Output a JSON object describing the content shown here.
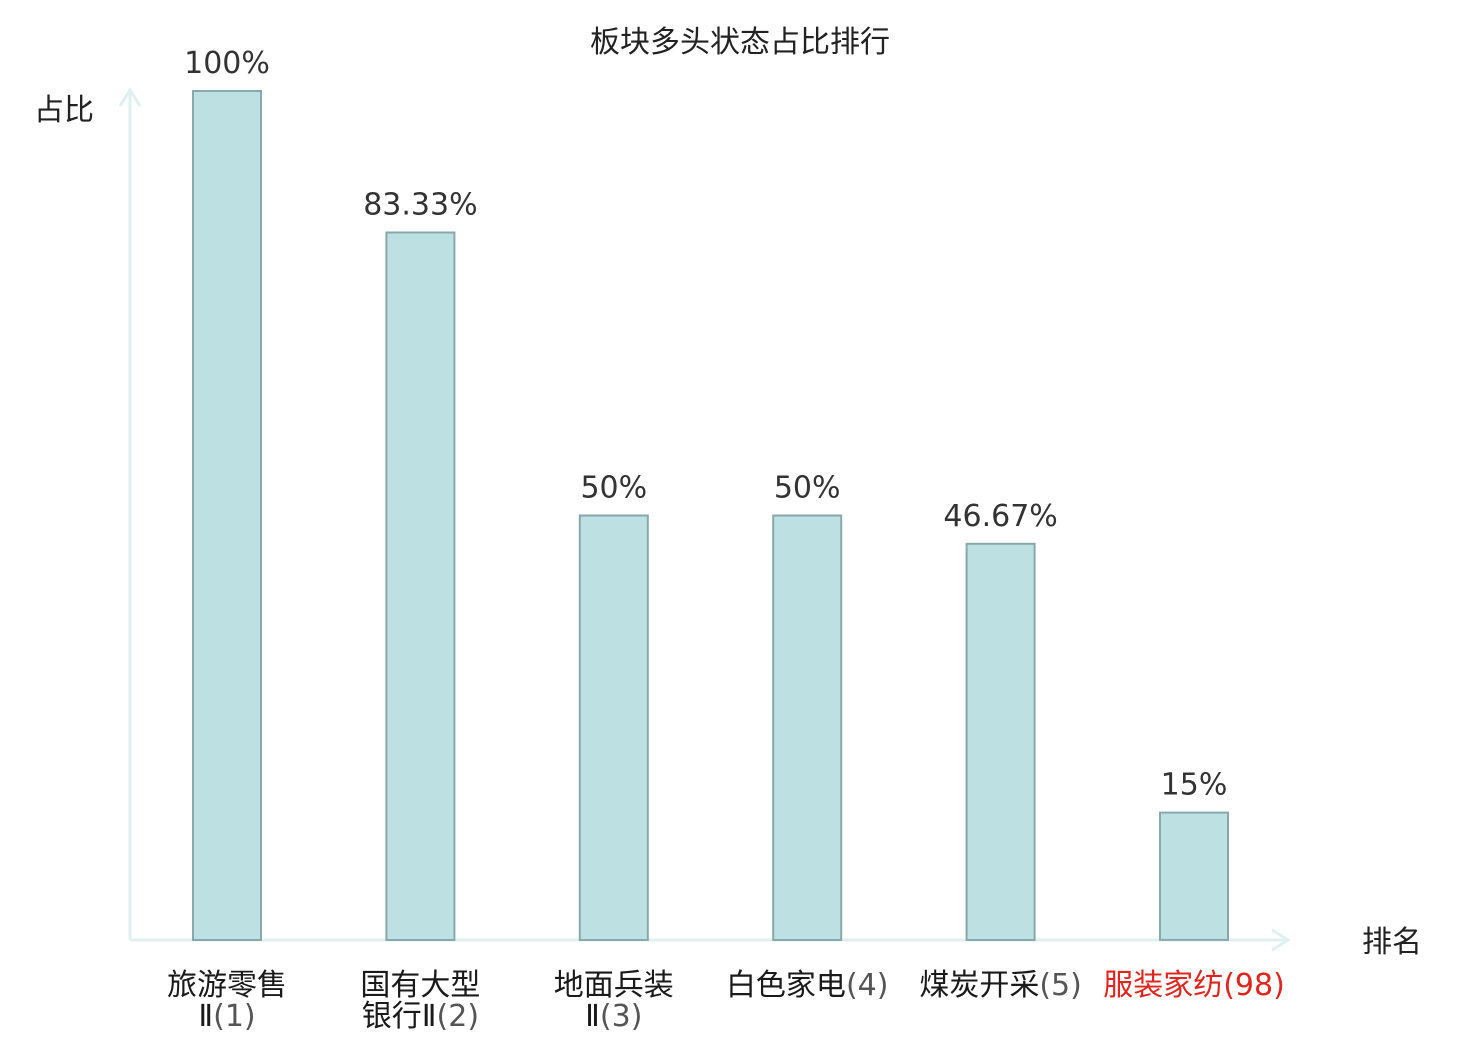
{
  "chart_data": {
    "type": "bar",
    "title": "板块多头状态占比排行",
    "ylabel": "占比",
    "xlabel": "排名",
    "ylim": [
      0,
      100
    ],
    "grid": false,
    "legend": "none",
    "values": [
      100,
      83.33,
      50,
      50,
      46.67,
      15
    ],
    "value_labels": [
      "100%",
      "83.33%",
      "50%",
      "50%",
      "46.67%",
      "15%"
    ],
    "categories": [
      {
        "lines": [
          [
            "旅游零售",
            ""
          ],
          [
            "Ⅱ",
            "(1)"
          ]
        ],
        "highlight": false
      },
      {
        "lines": [
          [
            "国有大型",
            ""
          ],
          [
            "银行Ⅱ",
            "(2)"
          ]
        ],
        "highlight": false
      },
      {
        "lines": [
          [
            "地面兵装",
            ""
          ],
          [
            "Ⅱ",
            "(3)"
          ]
        ],
        "highlight": false
      },
      {
        "lines": [
          [
            "白色家电",
            "(4)"
          ]
        ],
        "highlight": false
      },
      {
        "lines": [
          [
            "煤炭开采",
            "(5)"
          ]
        ],
        "highlight": false
      },
      {
        "lines": [
          [
            "服装家纺",
            "(98)"
          ]
        ],
        "highlight": true
      }
    ],
    "colors": {
      "bar_fill": "#bde1e3",
      "bar_stroke": "#88a8aa",
      "axis": "#dff1ef",
      "label": "#1a1a1a",
      "rank": "#555555",
      "highlight": "#e0251f"
    }
  }
}
